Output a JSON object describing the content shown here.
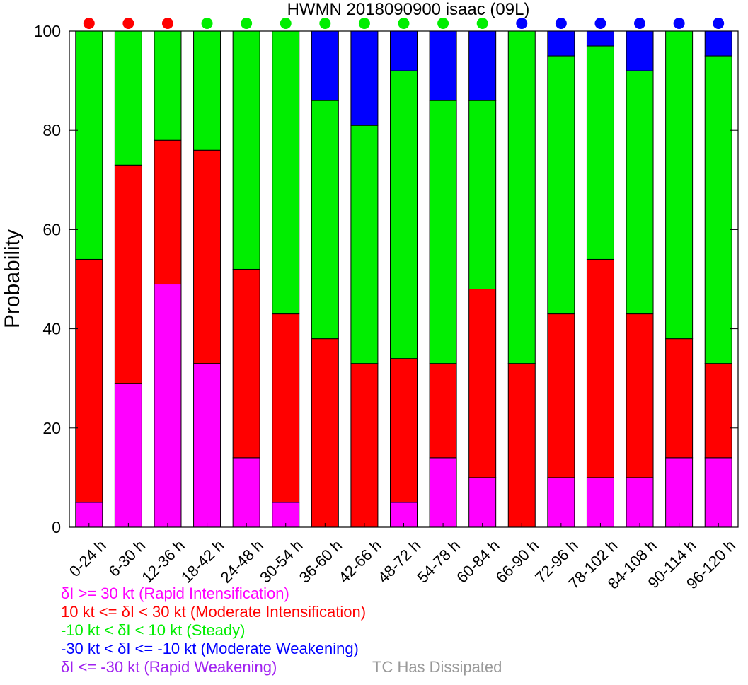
{
  "chart_data": {
    "type": "bar",
    "stacked": true,
    "title": "HWMN 2018090900 isaac (09L)",
    "ylabel": "Probability",
    "xlabel": "",
    "ylim": [
      0,
      100
    ],
    "yticks": [
      0,
      20,
      40,
      60,
      80,
      100
    ],
    "categories": [
      "0-24 h",
      "6-30 h",
      "12-36 h",
      "18-42 h",
      "24-48 h",
      "30-54 h",
      "36-60 h",
      "42-66 h",
      "48-72 h",
      "54-78 h",
      "60-84 h",
      "66-90 h",
      "72-96 h",
      "78-102 h",
      "84-108 h",
      "90-114 h",
      "96-120 h"
    ],
    "series": [
      {
        "name": "δI >= 30 kt (Rapid Intensification)",
        "color": "#ff00ff",
        "values": [
          5,
          29,
          49,
          33,
          14,
          5,
          0,
          0,
          5,
          14,
          10,
          0,
          10,
          10,
          10,
          14,
          14
        ]
      },
      {
        "name": "10 kt <= δI < 30 kt (Moderate Intensification)",
        "color": "#ff0000",
        "values": [
          49,
          44,
          29,
          43,
          38,
          38,
          38,
          33,
          29,
          19,
          38,
          33,
          33,
          44,
          33,
          24,
          19
        ]
      },
      {
        "name": "-10 kt < δI < 10 kt (Steady)",
        "color": "#00ee00",
        "values": [
          46,
          27,
          22,
          24,
          48,
          57,
          48,
          48,
          58,
          53,
          38,
          67,
          52,
          43,
          49,
          62,
          62
        ]
      },
      {
        "name": "-30 kt < δI <= -10 kt (Moderate Weakening)",
        "color": "#0000ff",
        "values": [
          0,
          0,
          0,
          0,
          0,
          0,
          14,
          19,
          8,
          14,
          14,
          0,
          5,
          3,
          8,
          0,
          5
        ]
      },
      {
        "name": "δI <= -30 kt (Rapid Weakening)",
        "color": "#a020f0",
        "values": [
          0,
          0,
          0,
          0,
          0,
          0,
          0,
          0,
          0,
          0,
          0,
          0,
          0,
          0,
          0,
          0,
          0
        ]
      }
    ],
    "indicator_dots": [
      "#ff0000",
      "#ff0000",
      "#ff0000",
      "#00ee00",
      "#00ee00",
      "#00ee00",
      "#00ee00",
      "#00ee00",
      "#00ee00",
      "#00ee00",
      "#00ee00",
      "#0000ff",
      "#0000ff",
      "#0000ff",
      "#0000ff",
      "#0000ff",
      "#0000ff"
    ],
    "grid": false,
    "legend_placement": "bottom-left"
  },
  "legend": {
    "ri": "δI >= 30 kt (Rapid Intensification)",
    "mi": "10 kt <= δI < 30 kt (Moderate Intensification)",
    "steady": "-10 kt < δI < 10 kt (Steady)",
    "mw": "-30 kt < δI <= -10 kt (Moderate Weakening)",
    "rw": "δI <= -30 kt (Rapid Weakening)",
    "dissipated": "TC Has Dissipated"
  },
  "colors": {
    "ri": "#ff00ff",
    "mi": "#ff0000",
    "steady": "#00ee00",
    "mw": "#0000ff",
    "rw": "#a020f0",
    "dissipated": "#999999"
  }
}
